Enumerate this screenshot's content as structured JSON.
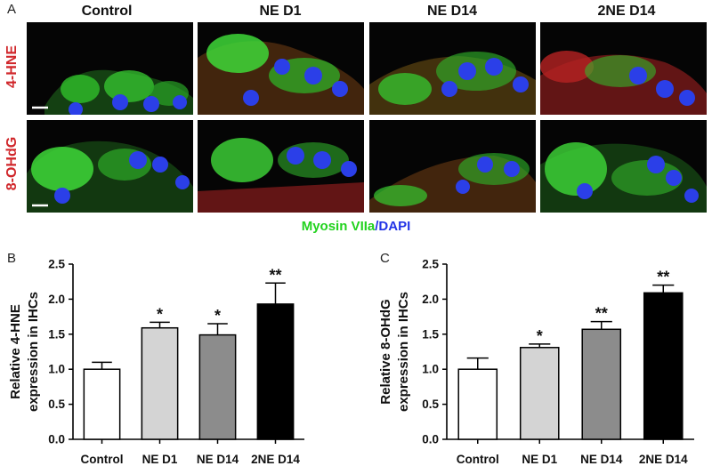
{
  "panel_letters": {
    "a": "A",
    "b": "B",
    "c": "C"
  },
  "micrographs": {
    "column_headers": [
      "Control",
      "NE D1",
      "NE D14",
      "2NE D14"
    ],
    "row_labels": [
      "4-HNE",
      "8-OHdG"
    ],
    "stain_legend": {
      "green_text": "Myosin VIIa",
      "slash": "/",
      "blue_text": "DAPI"
    },
    "colors": {
      "green": "#22d21e",
      "blue": "#2233e6",
      "red": "#d0262a"
    }
  },
  "chart_data": [
    {
      "type": "bar",
      "categories": [
        "Control",
        "NE D1",
        "NE D14",
        "2NE D14"
      ],
      "values": [
        1.0,
        1.59,
        1.49,
        1.93
      ],
      "errors": [
        0.1,
        0.08,
        0.16,
        0.3
      ],
      "significance": [
        "",
        "*",
        "*",
        "**"
      ],
      "ylabel_line1": "Relative 4-HNE",
      "ylabel_line2": "expression in IHCs",
      "ylim": [
        0,
        2.5
      ],
      "yticks": [
        "0.0",
        "0.5",
        "1.0",
        "1.5",
        "2.0",
        "2.5"
      ],
      "bar_colors": [
        "#ffffff",
        "#d4d4d4",
        "#8c8c8c",
        "#000000"
      ]
    },
    {
      "type": "bar",
      "categories": [
        "Control",
        "NE D1",
        "NE D14",
        "2NE D14"
      ],
      "values": [
        1.0,
        1.31,
        1.57,
        2.09
      ],
      "errors": [
        0.16,
        0.05,
        0.11,
        0.11
      ],
      "significance": [
        "",
        "*",
        "**",
        "**"
      ],
      "ylabel_line1": "Relative 8-OHdG",
      "ylabel_line2": "expression in IHCs",
      "ylim": [
        0,
        2.5
      ],
      "yticks": [
        "0.0",
        "0.5",
        "1.0",
        "1.5",
        "2.0",
        "2.5"
      ],
      "bar_colors": [
        "#ffffff",
        "#d4d4d4",
        "#8c8c8c",
        "#000000"
      ]
    }
  ]
}
